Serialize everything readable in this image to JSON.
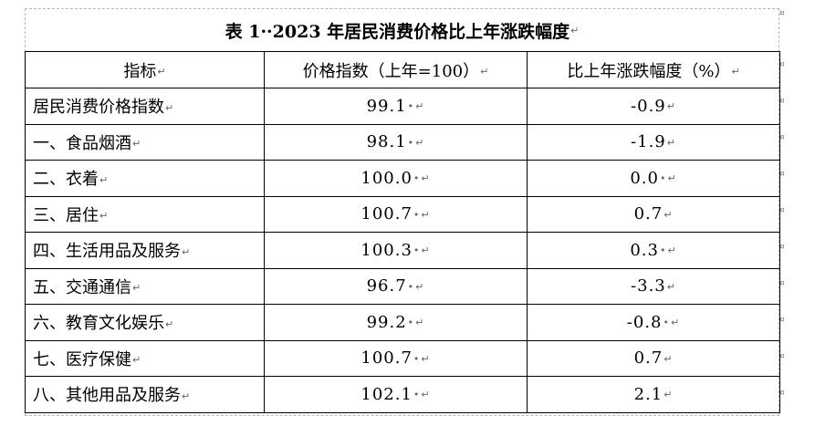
{
  "table": {
    "title": "表 1··2023 年居民消费价格比上年涨跌幅度",
    "headers": [
      "指标",
      "价格指数（上年=100）",
      "比上年涨跌幅度（%）"
    ],
    "rows": [
      {
        "label": "居民消费价格指数",
        "index": "99.1",
        "change": "-0.9"
      },
      {
        "label": "一、食品烟酒",
        "index": "98.1",
        "change": "-1.9"
      },
      {
        "label": "二、衣着",
        "index": "100.0",
        "change": "0.0"
      },
      {
        "label": "三、居住",
        "index": "100.7",
        "change": "0.7"
      },
      {
        "label": "四、生活用品及服务",
        "index": "100.3",
        "change": "0.3"
      },
      {
        "label": "五、交通通信",
        "index": "96.7",
        "change": "-3.3"
      },
      {
        "label": "六、教育文化娱乐",
        "index": "99.2",
        "change": "-0.8"
      },
      {
        "label": "七、医疗保健",
        "index": "100.7",
        "change": "0.7"
      },
      {
        "label": "八、其他用品及服务",
        "index": "102.1",
        "change": "2.1"
      }
    ]
  },
  "editor_marks": {
    "paragraph_mark": "↵",
    "space_dot": "•",
    "cell_end_mark": "¤"
  }
}
